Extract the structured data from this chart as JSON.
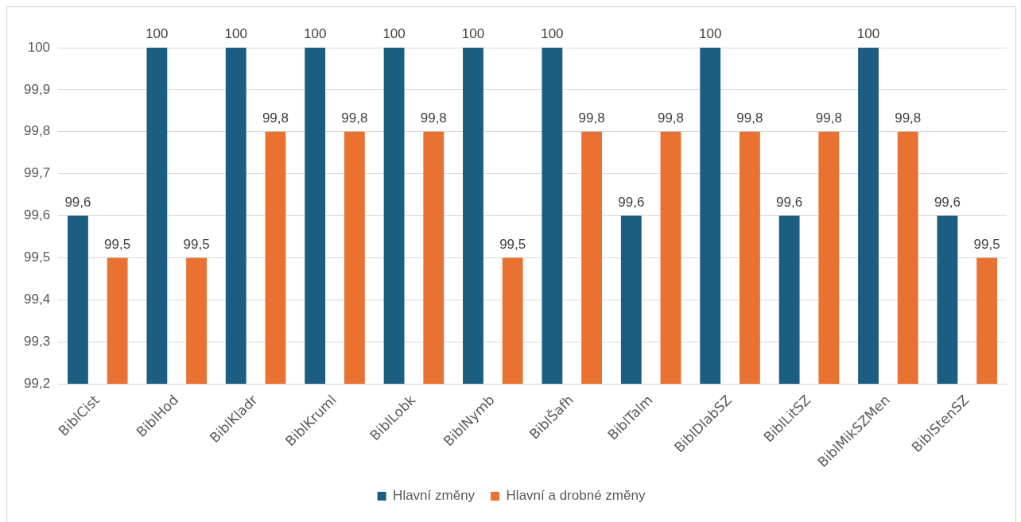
{
  "chart_data": {
    "type": "bar",
    "categories": [
      "BiblCist",
      "BiblHod",
      "BiblKladr",
      "BiblKruml",
      "BiblLobk",
      "BiblNymb",
      "BiblŠafh",
      "BiblTalm",
      "BiblDlabSZ",
      "BiblLitSZ",
      "BiblMikSZMen",
      "BiblStenSZ"
    ],
    "series": [
      {
        "name": "Hlavní změny",
        "color": "#1b5e82",
        "values": [
          99.6,
          100,
          100,
          100,
          100,
          100,
          100,
          99.6,
          100,
          99.6,
          100,
          99.6
        ],
        "value_labels": [
          "99,6",
          "100",
          "100",
          "100",
          "100",
          "100",
          "100",
          "99,6",
          "100",
          "99,6",
          "100",
          "99,6"
        ]
      },
      {
        "name": "Hlavní a drobné změny",
        "color": "#e97132",
        "values": [
          99.5,
          99.5,
          99.8,
          99.8,
          99.8,
          99.5,
          99.8,
          99.8,
          99.8,
          99.8,
          99.8,
          99.5
        ],
        "value_labels": [
          "99,5",
          "99,5",
          "99,8",
          "99,8",
          "99,8",
          "99,5",
          "99,8",
          "99,8",
          "99,8",
          "99,8",
          "99,8",
          "99,5"
        ]
      }
    ],
    "ylim": [
      99.2,
      100
    ],
    "yticks": [
      {
        "value": 99.2,
        "label": "99,2"
      },
      {
        "value": 99.3,
        "label": "99,3"
      },
      {
        "value": 99.4,
        "label": "99,4"
      },
      {
        "value": 99.5,
        "label": "99,5"
      },
      {
        "value": 99.6,
        "label": "99,6"
      },
      {
        "value": 99.7,
        "label": "99,7"
      },
      {
        "value": 99.8,
        "label": "99,8"
      },
      {
        "value": 99.9,
        "label": "99,9"
      },
      {
        "value": 100,
        "label": "100"
      }
    ],
    "grid": "y",
    "legend": "bottom"
  }
}
